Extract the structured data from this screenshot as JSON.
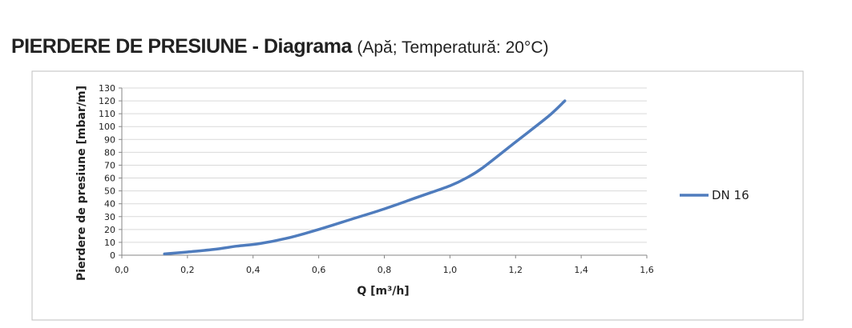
{
  "heading": {
    "title": "PIERDERE DE PRESIUNE - Diagrama",
    "subtitle": "(Apă; Temperatură: 20°C)"
  },
  "chart_data": {
    "type": "line",
    "xlabel": "Q [m³/h]",
    "ylabel": "Pierdere de presiune [mbar/m]",
    "xlim": [
      0,
      1.6
    ],
    "ylim": [
      0,
      130
    ],
    "x_tick_labels": [
      "0,0",
      "0,2",
      "0,4",
      "0,6",
      "0,8",
      "1,0",
      "1,2",
      "1,4",
      "1,6"
    ],
    "y_tick_labels": [
      "0",
      "10",
      "20",
      "30",
      "40",
      "50",
      "60",
      "70",
      "80",
      "90",
      "100",
      "110",
      "120",
      "130"
    ],
    "grid": "horizontal",
    "legend_position": "right",
    "series": [
      {
        "name": "DN 16",
        "color": "#4f7cbd",
        "x": [
          0.13,
          0.2,
          0.28,
          0.35,
          0.42,
          0.5,
          0.6,
          0.7,
          0.8,
          0.9,
          1.0,
          1.05,
          1.1,
          1.2,
          1.3,
          1.35
        ],
        "y": [
          1,
          2.5,
          4.5,
          7,
          9,
          13,
          20,
          28,
          36,
          45,
          54,
          60,
          68,
          88,
          108,
          120
        ]
      }
    ]
  }
}
